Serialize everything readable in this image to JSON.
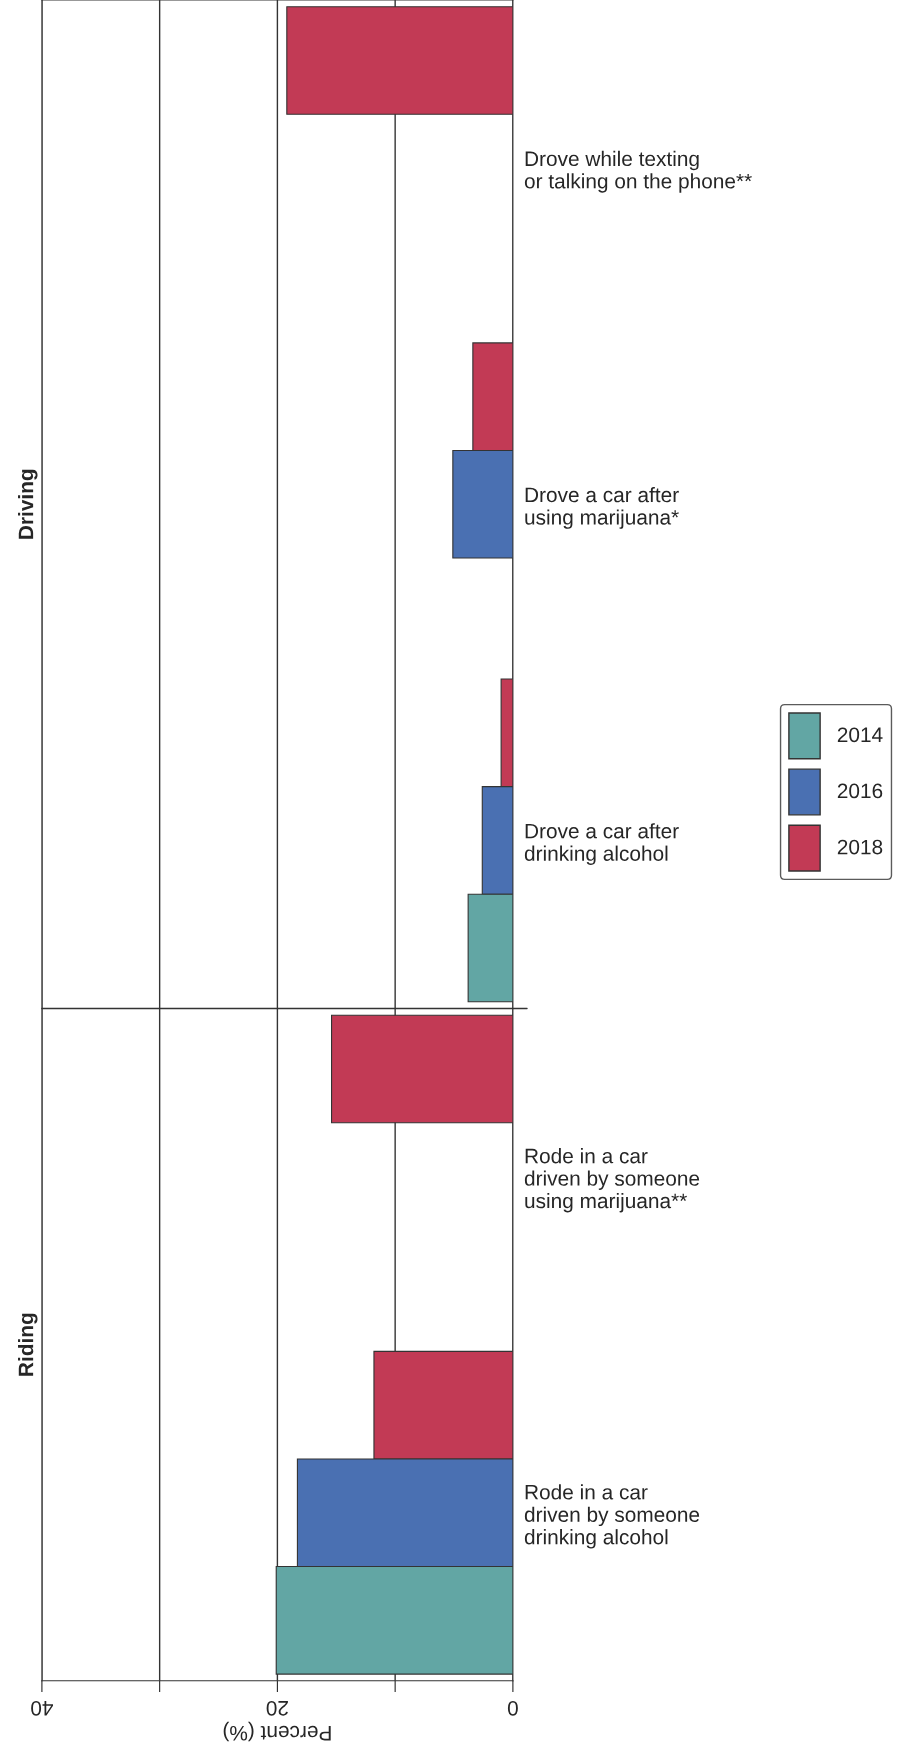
{
  "chart_data": {
    "type": "bar",
    "orientation": "horizontal",
    "xlabel": "Percent (%)",
    "categories": [
      "Drove while texting\nor talking on the phone**",
      "Drove a car after\nusing marijuana*",
      "Drove a car after\ndrinking alcohol",
      "Rode in a car\ndriven by someone\nusing marijuana**",
      "Rode in a car\ndriven by someone\ndrinking alcohol"
    ],
    "series": [
      {
        "name": "2018",
        "color": "#c23a55",
        "values": [
          19.2,
          3.4,
          1.0,
          15.4,
          11.8
        ]
      },
      {
        "name": "2016",
        "color": "#4a70b2",
        "values": [
          null,
          5.1,
          2.6,
          null,
          18.3
        ]
      },
      {
        "name": "2014",
        "color": "#62a6a4",
        "values": [
          null,
          null,
          3.8,
          null,
          20.1
        ]
      }
    ],
    "xlim": [
      40,
      0
    ],
    "xticks": [
      40,
      {
        "value": 30,
        "label": null
      },
      20,
      {
        "value": 10,
        "label": null
      },
      0
    ],
    "grid": "x",
    "legend": "right",
    "annotations": [
      "Driving",
      "Riding"
    ]
  }
}
